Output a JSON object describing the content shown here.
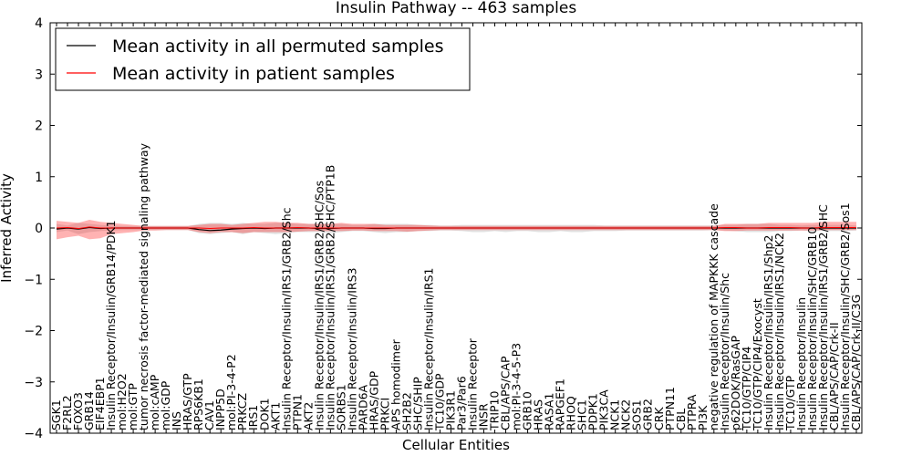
{
  "chart_data": {
    "type": "line",
    "title": "Insulin Pathway -- 463 samples",
    "xlabel": "Cellular Entities",
    "ylabel": "Inferred Activity",
    "ylim": [
      -4,
      4
    ],
    "yticks": [
      -4,
      -3,
      -2,
      -1,
      0,
      1,
      2,
      3,
      4
    ],
    "ytick_labels": [
      "−4",
      "−3",
      "−2",
      "−1",
      "0",
      "1",
      "2",
      "3",
      "4"
    ],
    "legend_position": "top-left",
    "categories": [
      "SGK1",
      "F2RL2",
      "FOXO3",
      "GRB14",
      "EIF4EBP1",
      "Insulin Receptor/Insulin/GRB14/PDK1",
      "mol:H2O2",
      "mol:GTP",
      "tumor necrosis factor-mediated signaling pathway",
      "mol:cAMP",
      "mol:GDP",
      "INS",
      "HRAS/GTP",
      "RPS6KB1",
      "CAV1",
      "INPP5D",
      "mol:PI-3-4-P2",
      "PRKCZ",
      "IRS1",
      "DOK1",
      "AKT1",
      "Insulin Receptor/Insulin/IRS1/GRB2/Shc",
      "PTPN1",
      "AKT2",
      "Insulin Receptor/Insulin/IRS1/GRB2/SHC/Sos",
      "Insulin Receptor/Insulin/IRS1/GRB2/SHC/PTP1B",
      "SORBS1",
      "Insulin Receptor/Insulin/IRS3",
      "PARD6A",
      "HRAS/GDP",
      "PRKCI",
      "APS homodimer",
      "SH2B2",
      "SHC/SHIP",
      "Insulin Receptor/Insulin/IRS1",
      "TC10/GDP",
      "PIK3R1",
      "Par3/Par6",
      "Insulin Receptor",
      "INSR",
      "TRIP10",
      "CBL/APS/CAP",
      "mol:PI-3-4-5-P3",
      "GRB10",
      "HRAS",
      "RASA1",
      "RAPGEF1",
      "RHOQ",
      "SHC1",
      "PDPK1",
      "PIK3CA",
      "NCK1",
      "NCK2",
      "SOS1",
      "GRB2",
      "CRK",
      "PTPN11",
      "CBL",
      "PTPRA",
      "PI3K",
      "negative regulation of MAPKKK cascade",
      "Insulin Receptor/Insulin/Shc",
      "p62DOK/RasGAP",
      "TC10/GTP/CIP4",
      "TC10/GTP/CIP4/Exocyst",
      "Insulin Receptor/Insulin/IRS1/Shp2",
      "Insulin Receptor/Insulin/IRS1/NCK2",
      "TC10/GTP",
      "Insulin Receptor/Insulin",
      "Insulin Receptor/Insulin/SHC/GRB10",
      "Insulin Receptor/Insulin/IRS1/GRB2/SHC",
      "CBL/APS/CAP/Crk-II",
      "Insulin Receptor/Insulin/SHC/GRB2/Sos1",
      "CBL/APS/CAP/Crk-II/C3G"
    ],
    "series": [
      {
        "name": "Mean activity in all permuted samples",
        "color": "#000000",
        "values": [
          -0.02,
          0.0,
          -0.02,
          0.01,
          -0.01,
          0.0,
          0.0,
          0.0,
          0.0,
          0.0,
          0.0,
          0.0,
          0.0,
          -0.03,
          -0.05,
          -0.04,
          -0.02,
          -0.01,
          0.0,
          -0.01,
          0.0,
          0.0,
          0.0,
          0.0,
          -0.01,
          -0.01,
          0.0,
          0.0,
          0.0,
          -0.01,
          -0.01,
          0.0,
          0.0,
          0.0,
          0.0,
          0.0,
          0.0,
          0.0,
          0.0,
          0.0,
          0.0,
          0.0,
          0.0,
          0.0,
          0.0,
          0.0,
          0.0,
          0.0,
          0.0,
          0.0,
          0.0,
          0.0,
          0.0,
          0.0,
          0.0,
          0.0,
          0.0,
          0.0,
          0.0,
          0.0,
          0.0,
          0.0,
          0.0,
          0.0,
          0.0,
          0.0,
          0.0,
          0.0,
          0.0,
          0.0,
          0.0,
          0.0,
          0.0,
          0.0
        ],
        "band_low": [
          -0.08,
          -0.05,
          -0.12,
          -0.08,
          -0.06,
          -0.05,
          -0.04,
          -0.04,
          -0.04,
          -0.04,
          -0.04,
          -0.04,
          -0.04,
          -0.1,
          -0.12,
          -0.1,
          -0.08,
          -0.12,
          -0.08,
          -0.1,
          -0.12,
          -0.1,
          -0.08,
          -0.08,
          -0.08,
          -0.1,
          -0.08,
          -0.06,
          -0.06,
          -0.08,
          -0.1,
          -0.08,
          -0.08,
          -0.06,
          -0.06,
          -0.05,
          -0.05,
          -0.06,
          -0.08,
          -0.08,
          -0.06,
          -0.08,
          -0.06,
          -0.06,
          -0.08,
          -0.08,
          -0.06,
          -0.08,
          -0.08,
          -0.06,
          -0.06,
          -0.06,
          -0.05,
          -0.05,
          -0.05,
          -0.05,
          -0.05,
          -0.05,
          -0.05,
          -0.05,
          -0.04,
          -0.05,
          -0.06,
          -0.08,
          -0.08,
          -0.08,
          -0.06,
          -0.06,
          -0.05,
          -0.06,
          -0.06,
          -0.06,
          -0.06,
          -0.05
        ],
        "band_high": [
          0.08,
          0.05,
          0.1,
          0.08,
          0.06,
          0.05,
          0.04,
          0.04,
          0.04,
          0.04,
          0.04,
          0.04,
          0.04,
          0.08,
          0.1,
          0.1,
          0.08,
          0.1,
          0.08,
          0.08,
          0.1,
          0.1,
          0.08,
          0.08,
          0.08,
          0.08,
          0.08,
          0.06,
          0.06,
          0.08,
          0.08,
          0.08,
          0.08,
          0.06,
          0.06,
          0.05,
          0.05,
          0.06,
          0.06,
          0.06,
          0.06,
          0.06,
          0.06,
          0.06,
          0.06,
          0.06,
          0.06,
          0.06,
          0.06,
          0.06,
          0.05,
          0.05,
          0.05,
          0.05,
          0.05,
          0.05,
          0.05,
          0.05,
          0.05,
          0.05,
          0.05,
          0.06,
          0.06,
          0.08,
          0.08,
          0.08,
          0.06,
          0.06,
          0.05,
          0.06,
          0.06,
          0.06,
          0.06,
          0.05
        ]
      },
      {
        "name": "Mean activity in patient samples",
        "color": "#ff0000",
        "values": [
          0.0,
          0.01,
          -0.01,
          0.02,
          0.0,
          0.0,
          0.0,
          0.0,
          0.0,
          0.0,
          0.0,
          0.0,
          0.0,
          0.0,
          -0.01,
          0.0,
          0.0,
          0.0,
          0.01,
          0.0,
          0.0,
          0.0,
          0.01,
          0.0,
          0.0,
          0.0,
          0.0,
          0.0,
          0.0,
          0.0,
          0.0,
          0.0,
          0.0,
          0.0,
          0.0,
          0.0,
          0.0,
          0.0,
          0.0,
          0.0,
          0.0,
          0.0,
          0.0,
          0.0,
          0.0,
          0.0,
          0.0,
          0.0,
          0.0,
          0.0,
          0.0,
          0.0,
          0.0,
          0.0,
          0.0,
          0.0,
          0.0,
          0.0,
          0.0,
          0.0,
          0.0,
          0.01,
          0.01,
          0.0,
          0.0,
          0.01,
          0.01,
          0.01,
          0.0,
          0.0,
          0.01,
          0.01,
          0.01,
          0.01
        ],
        "band_low": [
          -0.22,
          -0.18,
          -0.15,
          -0.22,
          -0.2,
          -0.12,
          -0.1,
          -0.08,
          -0.05,
          -0.05,
          -0.04,
          -0.04,
          -0.04,
          -0.08,
          -0.1,
          -0.08,
          -0.08,
          -0.1,
          -0.08,
          -0.08,
          -0.08,
          -0.08,
          -0.07,
          -0.06,
          -0.06,
          -0.06,
          -0.06,
          -0.05,
          -0.05,
          -0.06,
          -0.06,
          -0.06,
          -0.07,
          -0.06,
          -0.05,
          -0.04,
          -0.04,
          -0.04,
          -0.04,
          -0.04,
          -0.04,
          -0.04,
          -0.04,
          -0.04,
          -0.04,
          -0.04,
          -0.04,
          -0.04,
          -0.04,
          -0.04,
          -0.04,
          -0.04,
          -0.04,
          -0.04,
          -0.04,
          -0.04,
          -0.04,
          -0.04,
          -0.04,
          -0.04,
          -0.04,
          -0.06,
          -0.06,
          -0.05,
          -0.05,
          -0.05,
          -0.05,
          -0.05,
          -0.05,
          -0.05,
          -0.04,
          -0.04,
          -0.04,
          -0.04
        ],
        "band_high": [
          0.14,
          0.12,
          0.1,
          0.16,
          0.12,
          0.1,
          0.08,
          0.06,
          0.04,
          0.04,
          0.04,
          0.04,
          0.04,
          0.06,
          0.08,
          0.08,
          0.06,
          0.08,
          0.1,
          0.12,
          0.12,
          0.1,
          0.1,
          0.08,
          0.08,
          0.08,
          0.1,
          0.08,
          0.08,
          0.08,
          0.06,
          0.06,
          0.06,
          0.06,
          0.05,
          0.04,
          0.04,
          0.04,
          0.04,
          0.04,
          0.04,
          0.04,
          0.04,
          0.04,
          0.04,
          0.04,
          0.04,
          0.04,
          0.04,
          0.04,
          0.04,
          0.04,
          0.04,
          0.04,
          0.04,
          0.04,
          0.04,
          0.04,
          0.04,
          0.04,
          0.04,
          0.08,
          0.08,
          0.08,
          0.08,
          0.1,
          0.1,
          0.1,
          0.1,
          0.1,
          0.12,
          0.12,
          0.12,
          0.12
        ]
      }
    ]
  }
}
